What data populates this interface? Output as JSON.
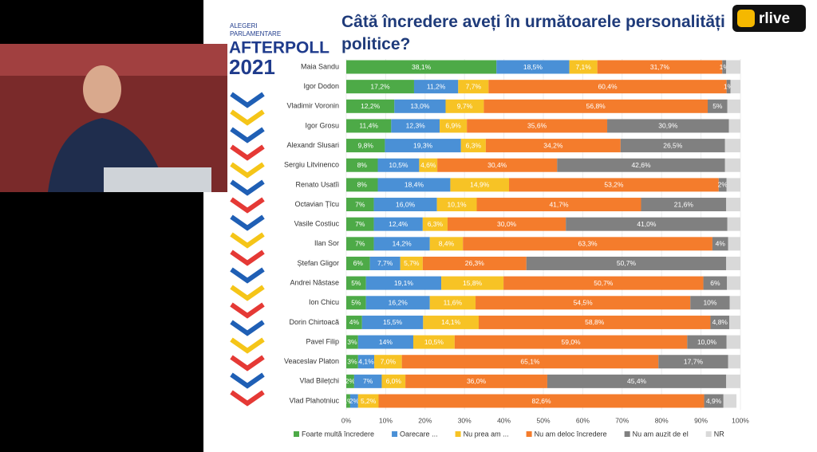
{
  "logo": {
    "line1": "ALEGERI",
    "line2": "PARLAMENTARE",
    "brand": "AFTERPOLL",
    "year": "2021"
  },
  "channel": "rlive",
  "chart_data": {
    "type": "stacked-bar-horizontal",
    "title": "Câtă încredere aveți în următoarele personalități politice?",
    "categories": [
      "Maia Sandu",
      "Igor Dodon",
      "Vladimir Voronin",
      "Igor Grosu",
      "Alexandr Slusari",
      "Sergiu Litvinenco",
      "Renato Usatîi",
      "Octavian Țîcu",
      "Vasile Costiuc",
      "Ilan Sor",
      "Ștefan Gligor",
      "Andrei Năstase",
      "Ion Chicu",
      "Dorin Chirtoacă",
      "Pavel Filip",
      "Veaceslav Platon",
      "Vlad Bilețchi",
      "Vlad Plahotniuc"
    ],
    "series": [
      {
        "name": "Foarte multă încredere",
        "color": "#4daa47",
        "values": [
          38.1,
          17.2,
          12.2,
          11.4,
          9.8,
          8,
          8,
          7,
          7,
          7,
          6,
          5,
          5,
          4,
          3,
          3,
          2,
          1
        ],
        "value_labels": [
          "38,1%",
          "17,2%",
          "12,2%",
          "11,4%",
          "9,8%",
          "8%",
          "8%",
          "7%",
          "7%",
          "7%",
          "6%",
          "5%",
          "5%",
          "4%",
          "3%",
          "3%",
          "2%",
          "1%"
        ]
      },
      {
        "name": "Oarecare ...",
        "color": "#4a90d6",
        "values": [
          18.5,
          11.2,
          13.0,
          12.3,
          19.3,
          10.5,
          18.4,
          16.0,
          12.4,
          14.2,
          7.7,
          19.1,
          16.2,
          15.5,
          14,
          4.1,
          7,
          2
        ],
        "value_labels": [
          "18,5%",
          "11,2%",
          "13,0%",
          "12,3%",
          "19,3%",
          "10,5%",
          "18,4%",
          "16,0%",
          "12,4%",
          "14,2%",
          "7,7%",
          "19,1%",
          "16,2%",
          "15,5%",
          "14%",
          "4,1%",
          "7%",
          "2%"
        ]
      },
      {
        "name": "Nu prea am ...",
        "color": "#f7c325",
        "values": [
          7.1,
          7.7,
          9.7,
          6.9,
          6.3,
          4.6,
          14.9,
          10.1,
          6.3,
          8.4,
          5.7,
          15.8,
          11.6,
          14.1,
          10.5,
          7.0,
          6.0,
          5.2
        ],
        "value_labels": [
          "7,1%",
          "7,7%",
          "9,7%",
          "6,9%",
          "6,3%",
          "4,6%",
          "14,9%",
          "10,1%",
          "6,3%",
          "8,4%",
          "5,7%",
          "15,8%",
          "11,6%",
          "14,1%",
          "10,5%",
          "7,0%",
          "6,0%",
          "5,2%"
        ]
      },
      {
        "name": "Nu am deloc încredere",
        "color": "#f47c2c",
        "values": [
          31.7,
          60.4,
          56.8,
          35.6,
          34.2,
          30.4,
          53.2,
          41.7,
          30.0,
          63.3,
          26.3,
          50.7,
          54.5,
          58.8,
          59.0,
          65.1,
          36.0,
          82.6
        ],
        "value_labels": [
          "31,7%",
          "60,4%",
          "56,8%",
          "35,6%",
          "34,2%",
          "30,4%",
          "53,2%",
          "41,7%",
          "30,0%",
          "63,3%",
          "26,3%",
          "50,7%",
          "54,5%",
          "58,8%",
          "59,0%",
          "65,1%",
          "36,0%",
          "82,6%"
        ]
      },
      {
        "name": "Nu am auzit de el",
        "color": "#808080",
        "values": [
          1,
          1,
          5,
          30.9,
          26.5,
          42.6,
          2,
          21.6,
          41.0,
          4,
          50.7,
          6,
          10,
          4.8,
          10.0,
          17.7,
          45.4,
          4.9
        ],
        "value_labels": [
          "1%",
          "1%",
          "5%",
          "30,9%",
          "26,5%",
          "42,6%",
          "2%",
          "21,6%",
          "41,0%",
          "4%",
          "50,7%",
          "6%",
          "10%",
          "4,8%",
          "10,0%",
          "17,7%",
          "45,4%",
          "4,9%"
        ]
      },
      {
        "name": "NR",
        "color": "#d9d9d9",
        "values": [
          3.6,
          2.5,
          3.3,
          2.9,
          3.9,
          3.9,
          3.5,
          3.6,
          3.3,
          3.1,
          3.6,
          3.4,
          2.7,
          2.8,
          3.5,
          3.1,
          3.6,
          3.3
        ]
      }
    ],
    "xlim": [
      0,
      100
    ],
    "xticks": [
      {
        "value": 0,
        "label": "0%"
      },
      {
        "value": 10,
        "label": "10%"
      },
      {
        "value": 20,
        "label": "20%"
      },
      {
        "value": 30,
        "label": "30%"
      },
      {
        "value": 40,
        "label": "40%"
      },
      {
        "value": 50,
        "label": "50%"
      },
      {
        "value": 60,
        "label": "60%"
      },
      {
        "value": 70,
        "label": "70%"
      },
      {
        "value": 80,
        "label": "80%"
      },
      {
        "value": 90,
        "label": "90%"
      },
      {
        "value": 100,
        "label": "100%"
      }
    ],
    "grid": true
  }
}
